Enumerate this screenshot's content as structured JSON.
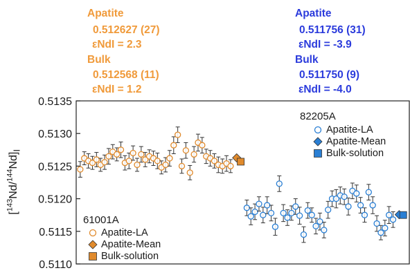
{
  "annotations": {
    "left": {
      "apatite_label": "Apatite",
      "apatite_ratio": "0.512627 (27)",
      "apatite_end": "εNdI = 2.3",
      "bulk_label": "Bulk",
      "bulk_ratio": "0.512568 (11)",
      "bulk_end": "εNdI = 1.2",
      "color": "#f09a3a"
    },
    "right": {
      "apatite_label": "Apatite",
      "apatite_ratio": "0.511756 (31)",
      "apatite_end": "εNdI = -3.9",
      "bulk_label": "Bulk",
      "bulk_ratio": "0.511750 (9)",
      "bulk_end": "εNdI = -4.0",
      "color": "#2b3bdc"
    }
  },
  "chart_data": {
    "type": "scatter",
    "ylabel_parts": [
      "[",
      "143",
      "Nd/",
      "144",
      "Nd]",
      "I"
    ],
    "ylim": [
      0.511,
      0.5135
    ],
    "yticks": [
      "0.5110",
      "0.5115",
      "0.5120",
      "0.5125",
      "0.5130",
      "0.5135"
    ],
    "grid": false,
    "groups": [
      {
        "sample": "61001A",
        "legend_placement": "bottom-left",
        "color": "#e08a2c",
        "legend": [
          "Apatite-LA",
          "Apatite-Mean",
          "Bulk-solution"
        ],
        "apatite_la": {
          "x": [
            1,
            2,
            3,
            4,
            5,
            6,
            7,
            8,
            9,
            10,
            11,
            12,
            13,
            14,
            15,
            16,
            17,
            18,
            19,
            20,
            21,
            22,
            23,
            24,
            25,
            26,
            27,
            28,
            29,
            30,
            31,
            32,
            33,
            34,
            35,
            36,
            37,
            38
          ],
          "y": [
            0.51245,
            0.51262,
            0.51258,
            0.51255,
            0.5126,
            0.51252,
            0.51256,
            0.51265,
            0.51272,
            0.51268,
            0.51275,
            0.51255,
            0.51258,
            0.5127,
            0.51252,
            0.51268,
            0.5126,
            0.51265,
            0.51262,
            0.51258,
            0.51248,
            0.51252,
            0.51262,
            0.51282,
            0.51298,
            0.5125,
            0.51274,
            0.5124,
            0.51268,
            0.51286,
            0.51282,
            0.51265,
            0.51262,
            0.51258,
            0.51252,
            0.5125,
            0.51254,
            0.5125
          ],
          "err": [
            0.00012,
            0.0001,
            0.00011,
            0.0001,
            0.00011,
            0.0001,
            0.00011,
            0.00012,
            0.00011,
            0.0001,
            0.00012,
            0.00011,
            0.00012,
            0.00011,
            0.0001,
            0.00012,
            0.00011,
            0.0001,
            0.00011,
            0.00012,
            0.0001,
            0.00011,
            0.00012,
            0.00013,
            0.00012,
            0.00011,
            0.00012,
            0.00011,
            0.00012,
            0.00013,
            0.00012,
            0.00011,
            0.00012,
            0.00011,
            0.00012,
            0.00011,
            0.00012,
            0.0001
          ]
        },
        "apatite_mean": {
          "x": 39.5,
          "y": 0.512627
        },
        "bulk_solution": {
          "x": 40.5,
          "y": 0.512568
        }
      },
      {
        "sample": "82205A",
        "legend_placement": "top-right",
        "color": "#2a7fd4",
        "legend": [
          "Apatite-LA",
          "Apatite-Mean",
          "Bulk-solution"
        ],
        "apatite_la": {
          "x": [
            42,
            43,
            44,
            45,
            46,
            47,
            48,
            49,
            50,
            51,
            52,
            53,
            54,
            55,
            56,
            57,
            58,
            59,
            60,
            61,
            62,
            63,
            64,
            65,
            66,
            67,
            68,
            69,
            70,
            71,
            72,
            73,
            74,
            75,
            76,
            77,
            78
          ],
          "y": [
            0.51186,
            0.51173,
            0.5118,
            0.51192,
            0.51175,
            0.5119,
            0.51178,
            0.51157,
            0.51223,
            0.51178,
            0.51171,
            0.51178,
            0.51188,
            0.51174,
            0.51145,
            0.51182,
            0.51175,
            0.51158,
            0.51165,
            0.51152,
            0.51183,
            0.512,
            0.512,
            0.51205,
            0.51203,
            0.51188,
            0.51212,
            0.51208,
            0.5119,
            0.51175,
            0.5121,
            0.5119,
            0.51162,
            0.51148,
            0.51155,
            0.51175,
            0.51168
          ],
          "err": [
            0.00012,
            0.00013,
            0.00012,
            0.00011,
            0.00012,
            0.00013,
            0.00012,
            0.00013,
            0.00012,
            0.00013,
            0.00012,
            0.00011,
            0.00012,
            0.00013,
            0.00012,
            0.00012,
            0.00011,
            0.00012,
            0.00013,
            0.00012,
            0.00013,
            0.00012,
            0.00014,
            0.00013,
            0.00012,
            0.00013,
            0.00012,
            0.00013,
            0.00012,
            0.00011,
            0.00012,
            0.00013,
            0.00012,
            0.00011,
            0.00012,
            0.00013,
            0.00012
          ]
        },
        "apatite_mean": {
          "x": 79.5,
          "y": 0.511756
        },
        "bulk_solution": {
          "x": 80.5,
          "y": 0.51175
        }
      }
    ],
    "xlim": [
      0,
      82
    ]
  }
}
